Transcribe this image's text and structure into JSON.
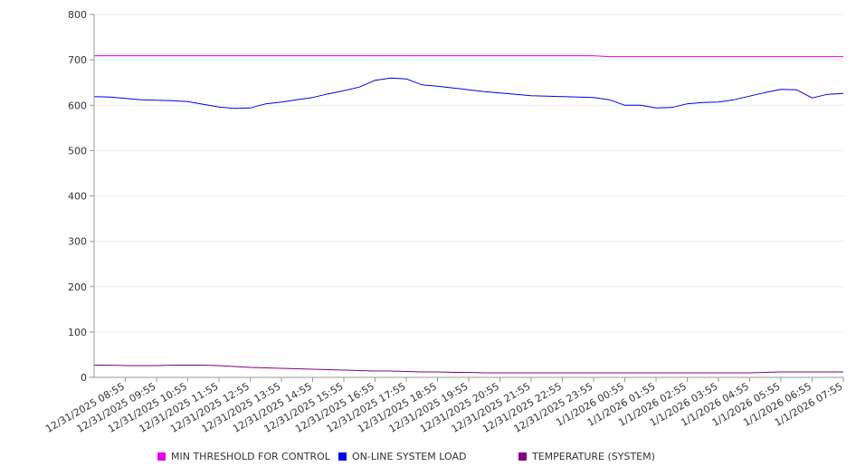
{
  "chart_data": {
    "type": "line",
    "title": "",
    "xlabel": "",
    "ylabel": "",
    "ylim": [
      0,
      800
    ],
    "y_ticks": [
      0,
      100,
      200,
      300,
      400,
      500,
      600,
      700,
      800
    ],
    "grid": true,
    "legend_position": "bottom",
    "x_tick_labels": [
      "12/31/2025 08:55",
      "12/31/2025 09:55",
      "12/31/2025 10:55",
      "12/31/2025 11:55",
      "12/31/2025 12:55",
      "12/31/2025 13:55",
      "12/31/2025 14:55",
      "12/31/2025 15:55",
      "12/31/2025 16:55",
      "12/31/2025 17:55",
      "12/31/2025 18:55",
      "12/31/2025 19:55",
      "12/31/2025 20:55",
      "12/31/2025 21:55",
      "12/31/2025 22:55",
      "12/31/2025 23:55",
      "1/1/2026 00:55",
      "1/1/2026 01:55",
      "1/1/2026 02:55",
      "1/1/2026 03:55",
      "1/1/2026 04:55",
      "1/1/2026 05:55",
      "1/1/2026 06:55",
      "1/1/2026 07:55"
    ],
    "x_hours": [
      0,
      0.5,
      1,
      1.5,
      2,
      2.5,
      3,
      3.5,
      4,
      4.5,
      5,
      5.5,
      6,
      6.5,
      7,
      7.5,
      8,
      8.5,
      9,
      9.5,
      10,
      10.5,
      11,
      11.5,
      12,
      12.5,
      13,
      13.5,
      14,
      14.5,
      15,
      15.5,
      16,
      16.5,
      17,
      17.5,
      18,
      18.5,
      19,
      19.5,
      20,
      20.5,
      21,
      21.5,
      22,
      22.5,
      23,
      23.5,
      24
    ],
    "series": [
      {
        "name": "MIN THRESHOLD FOR CONTROL",
        "color": "#e800e8",
        "values": [
          709,
          709,
          709,
          709,
          709,
          709,
          709,
          709,
          709,
          709,
          709,
          709,
          709,
          709,
          709,
          709,
          709,
          709,
          709,
          709,
          709,
          709,
          709,
          709,
          709,
          709,
          709,
          709,
          709,
          709,
          709,
          709,
          709,
          707,
          707,
          707,
          707,
          707,
          707,
          707,
          707,
          707,
          707,
          707,
          707,
          707,
          707,
          707,
          707
        ]
      },
      {
        "name": "ON-LINE SYSTEM LOAD",
        "color": "#0000e0",
        "values": [
          619,
          618,
          615,
          612,
          611,
          610,
          608,
          602,
          596,
          593,
          594,
          603,
          607,
          612,
          617,
          625,
          632,
          640,
          655,
          660,
          658,
          645,
          642,
          638,
          634,
          630,
          627,
          624,
          621,
          620,
          619,
          618,
          617,
          612,
          600,
          600,
          594,
          595,
          603,
          606,
          607,
          612,
          620,
          628,
          635,
          634,
          616,
          624,
          626
        ]
      },
      {
        "name": "TEMPERATURE (SYSTEM)",
        "color": "#800080",
        "values": [
          27,
          27,
          26,
          26,
          26,
          27,
          27,
          27,
          26,
          24,
          22,
          21,
          20,
          19,
          18,
          17,
          16,
          15,
          14,
          14,
          13,
          12,
          12,
          11,
          11,
          10,
          10,
          10,
          10,
          10,
          10,
          10,
          10,
          10,
          10,
          10,
          10,
          10,
          10,
          10,
          10,
          10,
          10,
          11,
          12,
          12,
          12,
          12,
          12
        ]
      }
    ]
  }
}
